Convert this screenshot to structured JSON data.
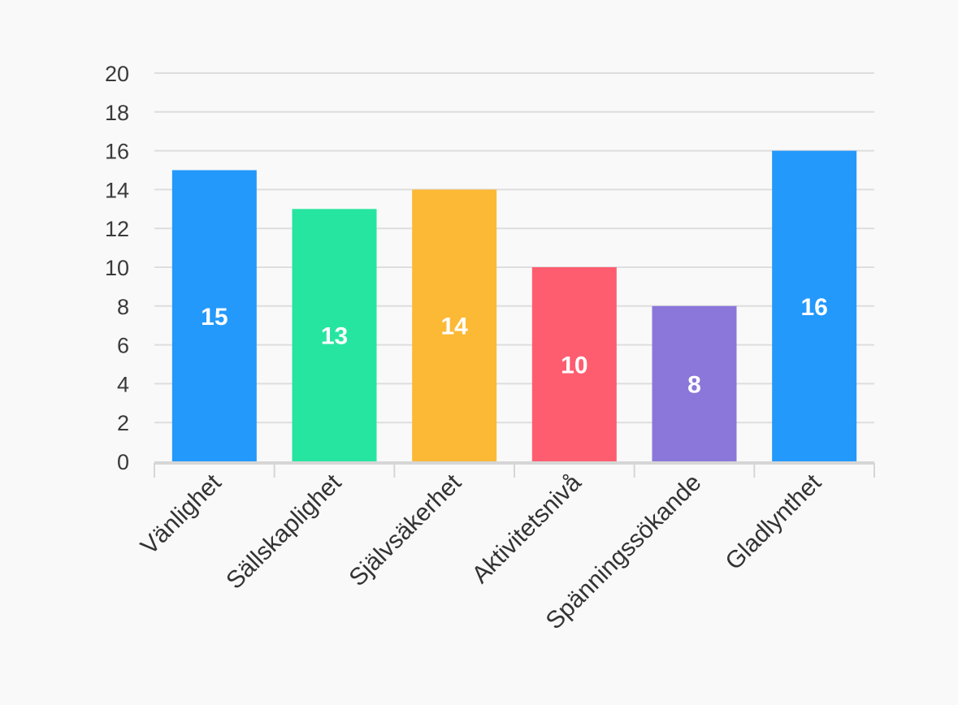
{
  "chart_data": {
    "type": "bar",
    "title": "",
    "xlabel": "",
    "ylabel": "",
    "categories": [
      "Vänlighet",
      "Sällskaplighet",
      "Självsäkerhet",
      "Aktivitetsnivå",
      "Spänningssökande",
      "Gladlynthet"
    ],
    "values": [
      15,
      13,
      14,
      10,
      8,
      16
    ],
    "colors": [
      "#2399fb",
      "#26e5a0",
      "#fcb935",
      "#fe5d70",
      "#8b77d9",
      "#2399fb"
    ],
    "ylim": [
      0,
      20
    ],
    "yticks": [
      0,
      2,
      4,
      6,
      8,
      10,
      12,
      14,
      16,
      18,
      20
    ],
    "grid": true,
    "legend": "none",
    "data_labels": true
  }
}
